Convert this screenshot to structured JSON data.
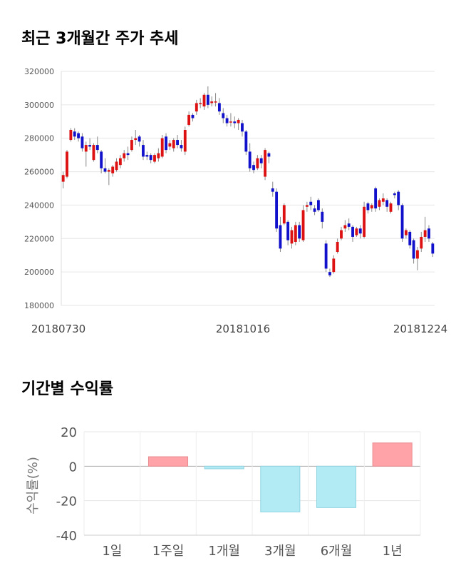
{
  "section1": {
    "title": "최근 3개월간 주가 추세"
  },
  "section2": {
    "title": "기간별 수익률"
  },
  "chart_data": [
    {
      "type": "candlestick",
      "title": "최근 3개월간 주가 추세",
      "ylim": [
        180000,
        320000
      ],
      "yticks": [
        180000,
        200000,
        220000,
        240000,
        260000,
        280000,
        300000,
        320000
      ],
      "yticklabels": [
        "180000",
        "200000",
        "220000",
        "240000",
        "260000",
        "280000",
        "300000",
        "320000"
      ],
      "xticklabels": [
        "20180730",
        "20181016",
        "20181224"
      ],
      "up_color": "#dd1111",
      "down_color": "#1111cc",
      "candles": [
        [
          254000,
          258000,
          250000,
          260000
        ],
        [
          257000,
          272000,
          256000,
          273000
        ],
        [
          279000,
          285000,
          278000,
          286000
        ],
        [
          284000,
          281000,
          279000,
          286000
        ],
        [
          283000,
          280000,
          278000,
          284000
        ],
        [
          281000,
          274000,
          272000,
          283000
        ],
        [
          272000,
          276000,
          263000,
          278000
        ],
        [
          276000,
          275000,
          273000,
          280000
        ],
        [
          267000,
          276000,
          266000,
          277000
        ],
        [
          276000,
          273000,
          271000,
          281000
        ],
        [
          272000,
          262000,
          259000,
          273000
        ],
        [
          262000,
          260000,
          259000,
          268000
        ],
        [
          260000,
          261000,
          252000,
          262000
        ],
        [
          259000,
          263000,
          257000,
          264000
        ],
        [
          261000,
          266000,
          260000,
          268000
        ],
        [
          264000,
          268000,
          262000,
          270000
        ],
        [
          268000,
          271000,
          266000,
          273000
        ],
        [
          271000,
          270000,
          267000,
          275000
        ],
        [
          273000,
          279000,
          272000,
          281000
        ],
        [
          279000,
          280000,
          276000,
          285000
        ],
        [
          281000,
          278000,
          275000,
          282000
        ],
        [
          276000,
          269000,
          267000,
          279000
        ],
        [
          270000,
          269000,
          267000,
          272000
        ],
        [
          270000,
          267000,
          265000,
          271000
        ],
        [
          266000,
          270000,
          265000,
          271000
        ],
        [
          268000,
          271000,
          266000,
          274000
        ],
        [
          269000,
          280000,
          268000,
          282000
        ],
        [
          281000,
          273000,
          271000,
          283000
        ],
        [
          275000,
          277000,
          273000,
          279000
        ],
        [
          274000,
          279000,
          272000,
          280000
        ],
        [
          279000,
          276000,
          274000,
          282000
        ],
        [
          276000,
          274000,
          272000,
          279000
        ],
        [
          272000,
          285000,
          270000,
          287000
        ],
        [
          288000,
          294000,
          287000,
          296000
        ],
        [
          294000,
          292000,
          290000,
          295000
        ],
        [
          296000,
          301000,
          294000,
          303000
        ],
        [
          301000,
          301000,
          298000,
          304000
        ],
        [
          299000,
          306000,
          297000,
          307000
        ],
        [
          306000,
          300000,
          298000,
          311000
        ],
        [
          301000,
          302000,
          299000,
          305000
        ],
        [
          302000,
          302000,
          299000,
          307000
        ],
        [
          301000,
          296000,
          294000,
          304000
        ],
        [
          295000,
          292000,
          289000,
          298000
        ],
        [
          292000,
          289000,
          287000,
          294000
        ],
        [
          290000,
          290000,
          287000,
          295000
        ],
        [
          290000,
          289000,
          286000,
          293000
        ],
        [
          289000,
          291000,
          285000,
          292000
        ],
        [
          289000,
          284000,
          281000,
          291000
        ],
        [
          284000,
          272000,
          270000,
          285000
        ],
        [
          272000,
          262000,
          260000,
          277000
        ],
        [
          264000,
          261000,
          259000,
          266000
        ],
        [
          262000,
          268000,
          261000,
          270000
        ],
        [
          268000,
          265000,
          262000,
          270000
        ],
        [
          257000,
          273000,
          255000,
          274000
        ],
        [
          271000,
          269000,
          265000,
          272000
        ],
        [
          250000,
          248000,
          245000,
          254000
        ],
        [
          248000,
          226000,
          224000,
          250000
        ],
        [
          228000,
          214000,
          212000,
          233000
        ],
        [
          229000,
          240000,
          228000,
          241000
        ],
        [
          230000,
          219000,
          216000,
          231000
        ],
        [
          217000,
          225000,
          214000,
          227000
        ],
        [
          218000,
          228000,
          216000,
          230000
        ],
        [
          228000,
          220000,
          218000,
          230000
        ],
        [
          219000,
          237000,
          218000,
          240000
        ],
        [
          239000,
          240000,
          236000,
          242000
        ],
        [
          242000,
          240000,
          237000,
          245000
        ],
        [
          238000,
          236000,
          234000,
          240000
        ],
        [
          243000,
          237000,
          236000,
          244000
        ],
        [
          236000,
          230000,
          226000,
          238000
        ],
        [
          217000,
          202000,
          200000,
          219000
        ],
        [
          200000,
          198000,
          197000,
          202000
        ],
        [
          200000,
          208000,
          199000,
          210000
        ],
        [
          212000,
          218000,
          211000,
          220000
        ],
        [
          220000,
          225000,
          219000,
          227000
        ],
        [
          226000,
          228000,
          224000,
          231000
        ],
        [
          229000,
          227000,
          225000,
          232000
        ],
        [
          227000,
          221000,
          218000,
          228000
        ],
        [
          222000,
          226000,
          221000,
          227000
        ],
        [
          226000,
          223000,
          220000,
          228000
        ],
        [
          221000,
          239000,
          220000,
          242000
        ],
        [
          241000,
          237000,
          235000,
          242000
        ],
        [
          238000,
          240000,
          236000,
          241000
        ],
        [
          250000,
          238000,
          236000,
          251000
        ],
        [
          239000,
          243000,
          237000,
          244000
        ],
        [
          242000,
          244000,
          240000,
          247000
        ],
        [
          243000,
          239000,
          236000,
          244000
        ],
        [
          236000,
          241000,
          235000,
          242000
        ],
        [
          247000,
          246000,
          244000,
          248000
        ],
        [
          248000,
          240000,
          237000,
          249000
        ],
        [
          240000,
          220000,
          218000,
          241000
        ],
        [
          222000,
          225000,
          220000,
          226000
        ],
        [
          224000,
          216000,
          214000,
          225000
        ],
        [
          219000,
          208000,
          205000,
          220000
        ],
        [
          208000,
          213000,
          201000,
          215000
        ],
        [
          214000,
          221000,
          212000,
          224000
        ],
        [
          221000,
          225000,
          218000,
          233000
        ],
        [
          226000,
          220000,
          218000,
          228000
        ],
        [
          217000,
          211000,
          209000,
          218000
        ]
      ]
    },
    {
      "type": "bar",
      "title": "기간별 수익률",
      "ylabel": "수익률(%)",
      "ylim": [
        -40,
        20
      ],
      "yticks": [
        20,
        0,
        -20,
        -40
      ],
      "yticklabels": [
        "20",
        "0",
        "-20",
        "-40"
      ],
      "categories": [
        "1일",
        "1주일",
        "1개월",
        "3개월",
        "6개월",
        "1년"
      ],
      "values": [
        0,
        5.5,
        -1.5,
        -26.5,
        -24,
        13.5
      ],
      "positive_color": "#ffa3a8",
      "negative_color": "#b2ebf4"
    }
  ]
}
